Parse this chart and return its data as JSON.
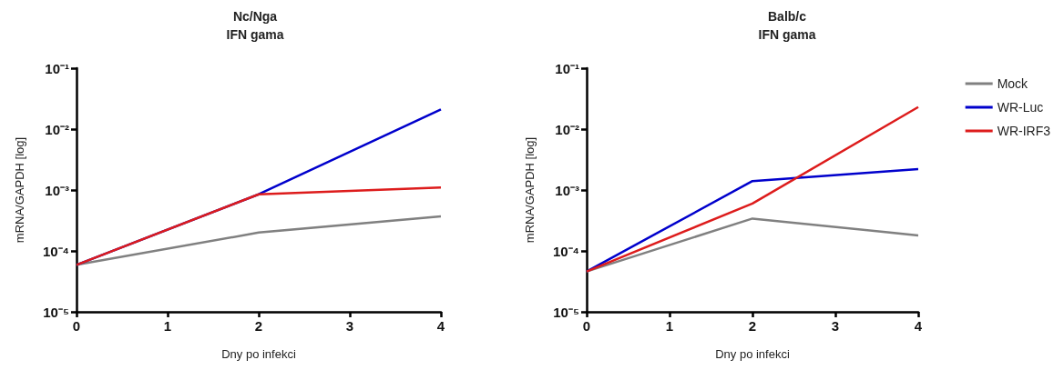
{
  "chart_data": [
    {
      "type": "line",
      "title": "Nc/Nga",
      "subtitle": "IFN gama",
      "xlabel": "Dny po infekci",
      "ylabel": "mRNA/GAPDH [log]",
      "x": [
        0,
        2,
        4
      ],
      "log": "y",
      "xlim": [
        0,
        4
      ],
      "xticks": [
        0,
        1,
        2,
        3,
        4
      ],
      "ylim": [
        1e-05,
        0.1
      ],
      "yticks": [
        {
          "value": 1e-05,
          "label": "10⁻⁵"
        },
        {
          "value": 0.0001,
          "label": "10⁻⁴"
        },
        {
          "value": 0.001,
          "label": "10⁻³"
        },
        {
          "value": 0.01,
          "label": "10⁻²"
        },
        {
          "value": 0.1,
          "label": "10⁻¹"
        }
      ],
      "grid": false,
      "legend": false,
      "marker": "none",
      "line_style": "solid",
      "series": [
        {
          "color": "#808080",
          "values": [
            5.9e-05,
            0.0002,
            0.00037
          ]
        },
        {
          "color": "#0000cc",
          "values": [
            5.9e-05,
            0.00085,
            0.021
          ]
        },
        {
          "color": "#dd1c1c",
          "values": [
            5.9e-05,
            0.00085,
            0.0011
          ]
        }
      ]
    },
    {
      "type": "line",
      "title": "Balb/c",
      "subtitle": "IFN gama",
      "xlabel": "Dny po infekci",
      "ylabel": "mRNA/GAPDH [log]",
      "x": [
        0,
        2,
        4
      ],
      "log": "y",
      "xlim": [
        0,
        4
      ],
      "xticks": [
        0,
        1,
        2,
        3,
        4
      ],
      "ylim": [
        1e-05,
        0.1
      ],
      "yticks": [
        {
          "value": 1e-05,
          "label": "10⁻⁵"
        },
        {
          "value": 0.0001,
          "label": "10⁻⁴"
        },
        {
          "value": 0.001,
          "label": "10⁻³"
        },
        {
          "value": 0.01,
          "label": "10⁻²"
        },
        {
          "value": 0.1,
          "label": "10⁻¹"
        }
      ],
      "grid": false,
      "legend": "right",
      "marker": "none",
      "line_style": "solid",
      "series": [
        {
          "name": "Mock",
          "color": "#808080",
          "values": [
            4.6e-05,
            0.00034,
            0.00018
          ]
        },
        {
          "name": "WR-Luc",
          "color": "#0000cc",
          "values": [
            4.6e-05,
            0.0014,
            0.0022
          ]
        },
        {
          "name": "WR-IRF3",
          "color": "#dd1c1c",
          "values": [
            4.6e-05,
            0.0006,
            0.023
          ]
        }
      ]
    }
  ]
}
